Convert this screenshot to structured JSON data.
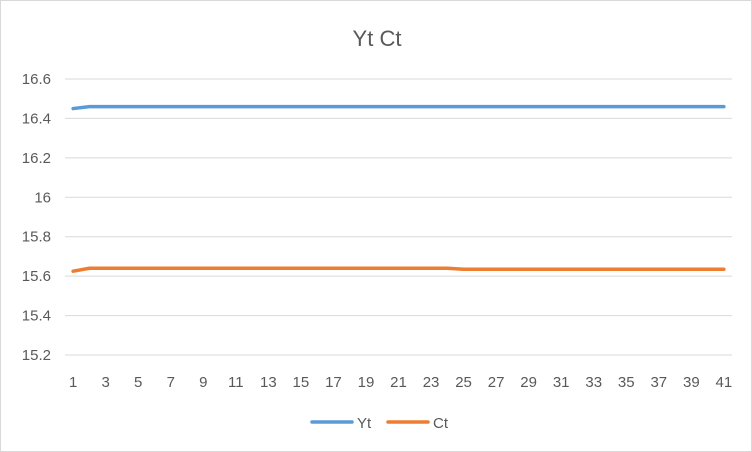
{
  "chart_data": {
    "type": "line",
    "title": "Yt Ct",
    "xlabel": "",
    "ylabel": "",
    "x": [
      1,
      2,
      3,
      4,
      5,
      6,
      7,
      8,
      9,
      10,
      11,
      12,
      13,
      14,
      15,
      16,
      17,
      18,
      19,
      20,
      21,
      22,
      23,
      24,
      25,
      26,
      27,
      28,
      29,
      30,
      31,
      32,
      33,
      34,
      35,
      36,
      37,
      38,
      39,
      40,
      41
    ],
    "x_tick_labels": [
      "1",
      "3",
      "5",
      "7",
      "9",
      "11",
      "13",
      "15",
      "17",
      "19",
      "21",
      "23",
      "25",
      "27",
      "29",
      "31",
      "33",
      "35",
      "37",
      "39",
      "41"
    ],
    "ylim": [
      15.2,
      16.6
    ],
    "y_ticks": [
      15.2,
      15.4,
      15.6,
      15.8,
      16,
      16.2,
      16.4,
      16.6
    ],
    "grid": true,
    "legend_position": "bottom",
    "series": [
      {
        "name": "Yt",
        "color": "#5b9bd5",
        "values": [
          16.45,
          16.46,
          16.46,
          16.46,
          16.46,
          16.46,
          16.46,
          16.46,
          16.46,
          16.46,
          16.46,
          16.46,
          16.46,
          16.46,
          16.46,
          16.46,
          16.46,
          16.46,
          16.46,
          16.46,
          16.46,
          16.46,
          16.46,
          16.46,
          16.46,
          16.46,
          16.46,
          16.46,
          16.46,
          16.46,
          16.46,
          16.46,
          16.46,
          16.46,
          16.46,
          16.46,
          16.46,
          16.46,
          16.46,
          16.46,
          16.46
        ]
      },
      {
        "name": "Ct",
        "color": "#ed7d31",
        "values": [
          15.625,
          15.64,
          15.64,
          15.64,
          15.64,
          15.64,
          15.64,
          15.64,
          15.64,
          15.64,
          15.64,
          15.64,
          15.64,
          15.64,
          15.64,
          15.64,
          15.64,
          15.64,
          15.64,
          15.64,
          15.64,
          15.64,
          15.64,
          15.64,
          15.635,
          15.635,
          15.635,
          15.635,
          15.635,
          15.635,
          15.635,
          15.635,
          15.635,
          15.635,
          15.635,
          15.635,
          15.635,
          15.635,
          15.635,
          15.635,
          15.635
        ]
      }
    ]
  }
}
